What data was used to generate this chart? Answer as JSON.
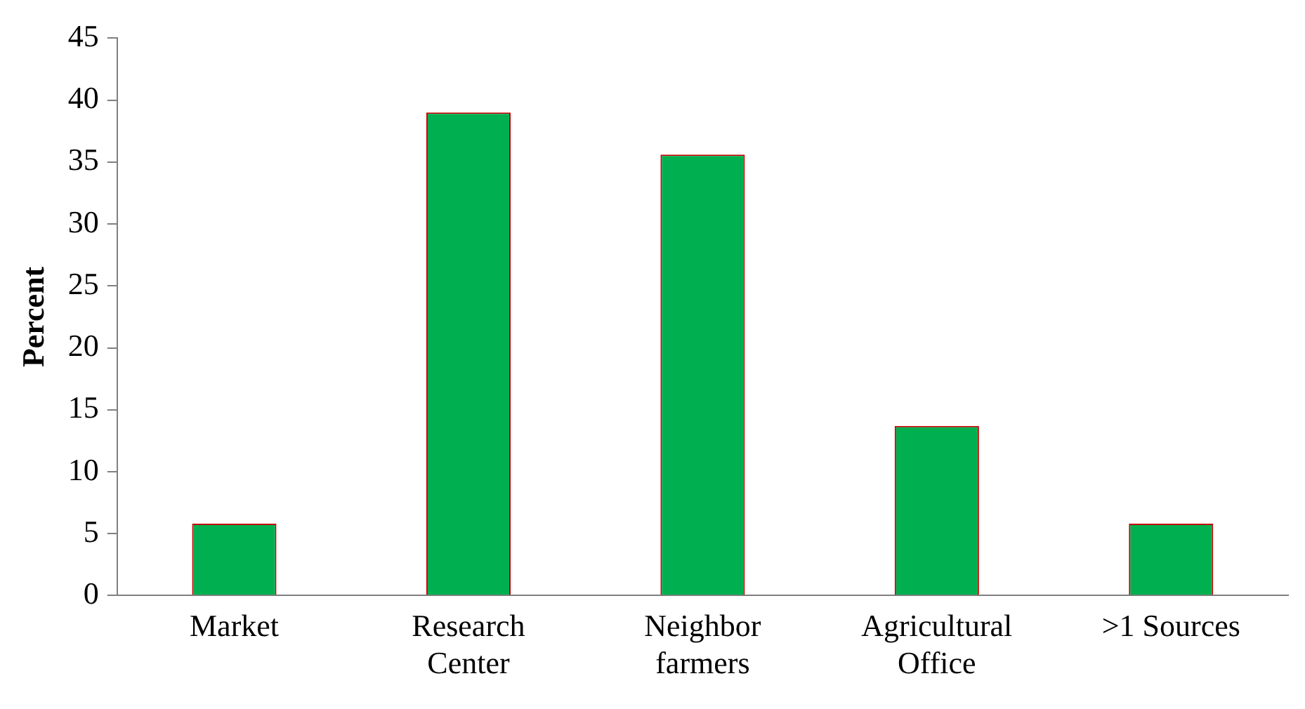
{
  "chart_data": {
    "type": "bar",
    "ylabel": "Percent",
    "categories": [
      "Market",
      "Research\nCenter",
      "Neighbor\nfarmers",
      "Agricultural\nOffice",
      ">1 Sources"
    ],
    "values": [
      5.8,
      39.0,
      35.6,
      13.7,
      5.8
    ],
    "color": "#00b050",
    "ylim": [
      0,
      45
    ],
    "yticks": [
      0,
      5,
      10,
      15,
      20,
      25,
      30,
      35,
      40,
      45
    ],
    "grid": false,
    "legend": false
  }
}
